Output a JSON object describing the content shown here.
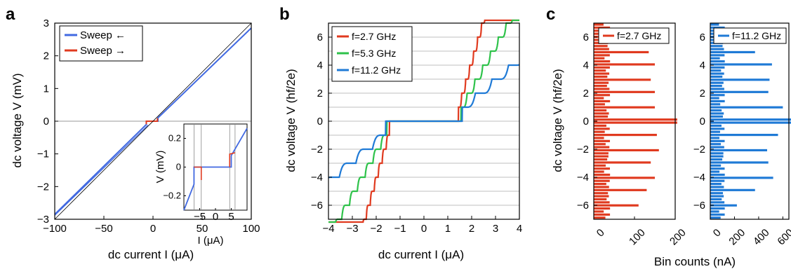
{
  "panels": {
    "a": {
      "letter": "a",
      "xlabel": "dc current I (μA)",
      "ylabel": "dc voltage V (mV)",
      "legend": [
        "Sweep ←",
        "Sweep →"
      ],
      "inset": {
        "xlabel": "I (μA)",
        "ylabel": "V (mV)"
      }
    },
    "b": {
      "letter": "b",
      "xlabel": "dc current I (μA)",
      "ylabel": "dc voltage V  (hf/2e)",
      "legend": [
        "f=2.7 GHz",
        "f=5.3 GHz",
        "f=11.2 GHz"
      ]
    },
    "c": {
      "letter": "c",
      "ylabel": "dc voltage V (hf/2e)",
      "xlabel": "Bin counts (nA)",
      "legend": [
        "f=2.7 GHz",
        "f=11.2 GHz"
      ]
    }
  },
  "colors": {
    "blue": "#2f6fd6",
    "red": "#e03a1f",
    "green": "#2ec24a",
    "steelblue": "#1f7ad6",
    "gray": "#999999"
  },
  "chart_data": [
    {
      "type": "line",
      "panel": "a",
      "xlabel": "dc current I (μA)",
      "ylabel": "dc voltage V (mV)",
      "xlim": [
        -100,
        100
      ],
      "ylim": [
        -3,
        3
      ],
      "xticks": [
        -100,
        -50,
        0,
        50,
        100
      ],
      "yticks": [
        -3,
        -2,
        -1,
        0,
        1,
        2,
        3
      ],
      "series": [
        {
          "name": "Sweep ←",
          "color": "#4169e1",
          "x": [
            -100,
            -6.8,
            -6.8,
            5,
            5,
            100
          ],
          "y": [
            -2.85,
            -0.1,
            0,
            0,
            0.1,
            2.85
          ]
        },
        {
          "name": "Sweep →",
          "color": "#e03a1f",
          "x": [
            -6.8,
            -6.8,
            4.5,
            4.5
          ],
          "y": [
            -0.09,
            0,
            0,
            0.09
          ]
        },
        {
          "name": "",
          "color": "#000000",
          "x": [
            -100,
            100
          ],
          "y": [
            -3,
            3
          ]
        }
      ],
      "inset": {
        "xlim": [
          -10,
          10
        ],
        "ylim": [
          -0.3,
          0.3
        ],
        "xticks": [
          -5,
          0,
          5
        ],
        "yticks": [
          -0.2,
          0,
          0.2
        ],
        "vlines": [
          -6.8,
          -4.5,
          4.5,
          6.2
        ]
      }
    },
    {
      "type": "line",
      "panel": "b",
      "xlabel": "dc current I (μA)",
      "ylabel": "dc voltage V (hf/2e)",
      "xlim": [
        -4,
        4
      ],
      "ylim": [
        -7,
        7
      ],
      "xticks": [
        -4,
        -3,
        -2,
        -1,
        0,
        1,
        2,
        3,
        4
      ],
      "yticks": [
        -6,
        -4,
        -2,
        0,
        2,
        4,
        6
      ],
      "series": [
        {
          "name": "f=2.7 GHz",
          "color": "#e03a1f",
          "ic": 1.45,
          "step": 0.2,
          "slope": 5.0
        },
        {
          "name": "f=5.3 GHz",
          "color": "#2ec24a",
          "ic": 1.55,
          "step": 0.4,
          "slope": 2.55
        },
        {
          "name": "f=11.2 GHz",
          "color": "#1f7ad6",
          "ic": 1.6,
          "step": 0.85,
          "slope": 1.2
        }
      ]
    },
    {
      "type": "bar",
      "panel": "c-left",
      "series_name": "f=2.7 GHz",
      "xlim": [
        0,
        200
      ],
      "xticks": [
        0,
        100,
        200
      ],
      "ylim": [
        -7,
        7
      ],
      "yticks": [
        -6,
        -4,
        -2,
        0,
        2,
        4,
        6
      ],
      "peaks": [
        {
          "v": 0,
          "count": 205
        },
        {
          "v": 1,
          "count": 150
        },
        {
          "v": -1,
          "count": 155
        },
        {
          "v": 2,
          "count": 150
        },
        {
          "v": -2,
          "count": 160
        },
        {
          "v": 3,
          "count": 140
        },
        {
          "v": -3,
          "count": 140
        },
        {
          "v": 4,
          "count": 150
        },
        {
          "v": -4,
          "count": 150
        },
        {
          "v": 5,
          "count": 135
        },
        {
          "v": -5,
          "count": 130
        },
        {
          "v": 6,
          "count": 110
        },
        {
          "v": -6,
          "count": 110
        }
      ],
      "background": 40
    },
    {
      "type": "bar",
      "panel": "c-right",
      "series_name": "f=11.2 GHz",
      "xlim": [
        0,
        650
      ],
      "xticks": [
        0,
        200,
        400,
        600
      ],
      "ylim": [
        -7,
        7
      ],
      "yticks": [
        -6,
        -4,
        -2,
        0,
        2,
        4,
        6
      ],
      "peaks": [
        {
          "v": 0,
          "count": 680
        },
        {
          "v": 1,
          "count": 600
        },
        {
          "v": -1,
          "count": 560
        },
        {
          "v": 2,
          "count": 480
        },
        {
          "v": -2,
          "count": 470
        },
        {
          "v": 3,
          "count": 490
        },
        {
          "v": -3,
          "count": 480
        },
        {
          "v": 4,
          "count": 510
        },
        {
          "v": -4,
          "count": 520
        },
        {
          "v": 5,
          "count": 370
        },
        {
          "v": -5,
          "count": 370
        },
        {
          "v": 6,
          "count": 170
        },
        {
          "v": -6,
          "count": 220
        }
      ],
      "background": 120
    }
  ]
}
